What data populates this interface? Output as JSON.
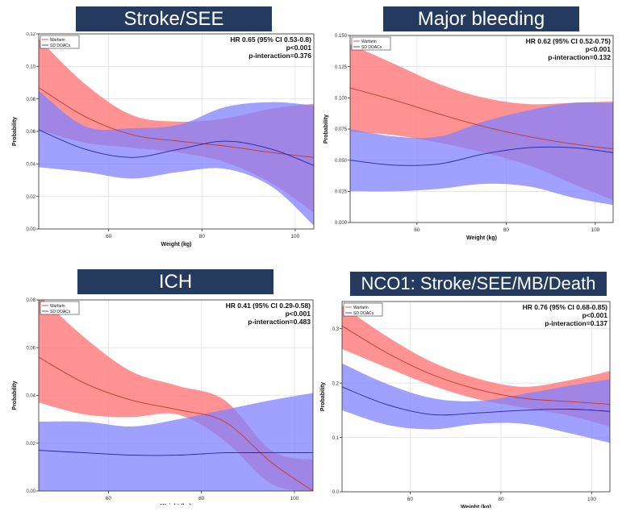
{
  "colors": {
    "banner_bg": "#243a5e",
    "banner_text": "#ffffff",
    "warfarin_band": "#ff8080",
    "warfarin_line": "#c0392b",
    "doac_band": "#8080ff",
    "doac_line": "#2222aa",
    "overlap": "#7a3fa8",
    "grid": "#e6e6e6"
  },
  "legend": {
    "warfarin": "Warfarin",
    "sd_doacs": "SD DOACs"
  },
  "chart_data": [
    {
      "type": "area",
      "title": "Stroke/SEE",
      "xlabel": "Weight (kg)",
      "ylabel": "Probability",
      "xlim": [
        45,
        104
      ],
      "ylim": [
        0,
        0.12
      ],
      "x_ticks": [
        60,
        80,
        100
      ],
      "y_ticks": [
        0,
        0.02,
        0.04,
        0.06,
        0.08,
        0.1,
        0.12
      ],
      "y_tick_labels": [
        "0.00",
        "0.02",
        "0.04",
        "0.06",
        "0.08",
        "0.10",
        "0.12"
      ],
      "grid": true,
      "legend_position": "top-left",
      "annotations": [
        "HR 0.65 (95% CI 0.53-0.8)",
        "p<0.001",
        "p-interaction=0.376"
      ],
      "x": [
        45,
        55,
        65,
        75,
        85,
        95,
        104
      ],
      "series": [
        {
          "name": "Warfarin",
          "mean": [
            0.087,
            0.069,
            0.058,
            0.054,
            0.051,
            0.047,
            0.044
          ],
          "lower": [
            0.061,
            0.053,
            0.05,
            0.047,
            0.041,
            0.028,
            0.01
          ],
          "upper": [
            0.117,
            0.089,
            0.07,
            0.066,
            0.068,
            0.074,
            0.077
          ]
        },
        {
          "name": "SD DOACs",
          "mean": [
            0.061,
            0.049,
            0.044,
            0.049,
            0.054,
            0.049,
            0.039
          ],
          "lower": [
            0.038,
            0.035,
            0.031,
            0.035,
            0.037,
            0.026,
            0.002
          ],
          "upper": [
            0.085,
            0.063,
            0.062,
            0.064,
            0.075,
            0.078,
            0.076
          ]
        }
      ]
    },
    {
      "type": "area",
      "title": "Major bleeding",
      "xlabel": "Weight (kg)",
      "ylabel": "Probability",
      "xlim": [
        45,
        104
      ],
      "ylim": [
        0,
        0.15
      ],
      "x_ticks": [
        60,
        80,
        100
      ],
      "y_ticks": [
        0,
        0.025,
        0.05,
        0.075,
        0.1,
        0.125,
        0.15
      ],
      "y_tick_labels": [
        "0.000",
        "0.025",
        "0.050",
        "0.075",
        "0.100",
        "0.125",
        "0.150"
      ],
      "grid": true,
      "legend_position": "top-left",
      "annotations": [
        "HR 0.62 (95% CI 0.52-0.75)",
        "p<0.001",
        "p-interaction=0.132"
      ],
      "x": [
        45,
        55,
        65,
        75,
        85,
        95,
        104
      ],
      "series": [
        {
          "name": "Warfarin",
          "mean": [
            0.108,
            0.098,
            0.087,
            0.077,
            0.069,
            0.063,
            0.059
          ],
          "lower": [
            0.073,
            0.07,
            0.064,
            0.056,
            0.046,
            0.031,
            0.018
          ],
          "upper": [
            0.143,
            0.127,
            0.111,
            0.1,
            0.095,
            0.096,
            0.097
          ]
        },
        {
          "name": "SD DOACs",
          "mean": [
            0.05,
            0.046,
            0.047,
            0.055,
            0.06,
            0.06,
            0.056
          ],
          "lower": [
            0.025,
            0.025,
            0.027,
            0.031,
            0.029,
            0.02,
            0.014
          ],
          "upper": [
            0.075,
            0.069,
            0.069,
            0.081,
            0.09,
            0.096,
            0.096
          ]
        }
      ]
    },
    {
      "type": "area",
      "title": "ICH",
      "xlabel": "Weight (kg)",
      "ylabel": "Probability",
      "xlim": [
        45,
        104
      ],
      "ylim": [
        0,
        0.08
      ],
      "x_ticks": [
        60,
        80,
        100
      ],
      "y_ticks": [
        0,
        0.02,
        0.04,
        0.06,
        0.08
      ],
      "y_tick_labels": [
        "0.00",
        "0.02",
        "0.04",
        "0.06",
        "0.08"
      ],
      "grid": true,
      "legend_position": "top-left",
      "annotations": [
        "HR 0.41 (95% CI 0.29-0.58)",
        "p<0.001",
        "p-interaction=0.483"
      ],
      "x": [
        45,
        55,
        65,
        75,
        85,
        95,
        104
      ],
      "series": [
        {
          "name": "Warfarin",
          "mean": [
            0.056,
            0.045,
            0.038,
            0.034,
            0.029,
            0.012,
            0.0
          ],
          "lower": [
            0.037,
            0.032,
            0.031,
            0.032,
            0.021,
            0.003,
            0.0
          ],
          "upper": [
            0.082,
            0.064,
            0.05,
            0.044,
            0.038,
            0.017,
            0.013
          ]
        },
        {
          "name": "SD DOACs",
          "mean": [
            0.017,
            0.016,
            0.015,
            0.015,
            0.016,
            0.016,
            0.016
          ],
          "lower": [
            0.0,
            0.0,
            0.0,
            0.0,
            0.0,
            0.0,
            0.0
          ],
          "upper": [
            0.029,
            0.029,
            0.027,
            0.03,
            0.034,
            0.038,
            0.041
          ]
        }
      ]
    },
    {
      "type": "area",
      "title": "NCO1: Stroke/SEE/MB/Death",
      "xlabel": "Weight (kg)",
      "ylabel": "Probability",
      "xlim": [
        45,
        104
      ],
      "ylim": [
        0,
        0.35
      ],
      "x_ticks": [
        60,
        80,
        100
      ],
      "y_ticks": [
        0,
        0.1,
        0.2,
        0.3
      ],
      "y_tick_labels": [
        "0.0",
        "0.1",
        "0.2",
        "0.3"
      ],
      "grid": true,
      "legend_position": "top-left",
      "annotations": [
        "HR 0.76 (95% CI 0.68-0.85)",
        "p<0.001",
        "p-interaction=0.137"
      ],
      "x": [
        45,
        55,
        65,
        75,
        85,
        95,
        104
      ],
      "series": [
        {
          "name": "Warfarin",
          "mean": [
            0.305,
            0.255,
            0.215,
            0.188,
            0.172,
            0.166,
            0.161
          ],
          "lower": [
            0.263,
            0.228,
            0.195,
            0.17,
            0.155,
            0.14,
            0.12
          ],
          "upper": [
            0.342,
            0.285,
            0.238,
            0.208,
            0.193,
            0.205,
            0.222
          ]
        },
        {
          "name": "SD DOACs",
          "mean": [
            0.193,
            0.16,
            0.142,
            0.145,
            0.15,
            0.152,
            0.148
          ],
          "lower": [
            0.15,
            0.123,
            0.115,
            0.125,
            0.125,
            0.108,
            0.09
          ],
          "upper": [
            0.236,
            0.198,
            0.172,
            0.167,
            0.18,
            0.195,
            0.207
          ]
        }
      ]
    }
  ]
}
